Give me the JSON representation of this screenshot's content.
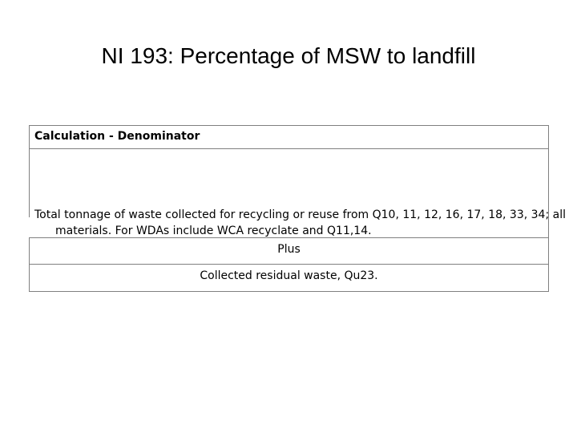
{
  "slide": {
    "title": "NI 193: Percentage of MSW to landfill"
  },
  "table": {
    "header": "Calculation - Denominator",
    "description": "Total tonnage of waste collected for recycling or reuse from Q10, 11, 12, 16, 17, 18, 33, 34; all materials. For WDAs include WCA recyclate and Q11,14.",
    "operator": "Plus",
    "residual": "Collected residual waste, Qu23."
  }
}
